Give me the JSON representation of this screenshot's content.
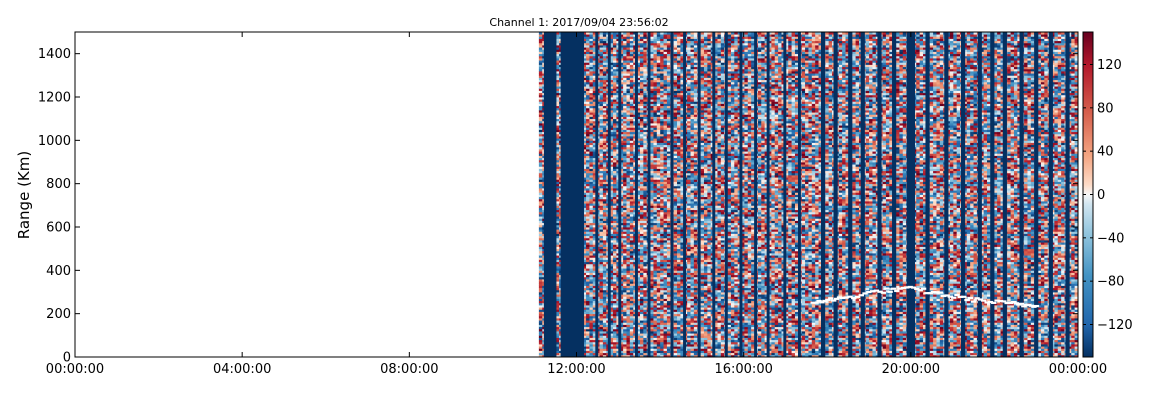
{
  "chart_data": {
    "type": "heatmap",
    "title": "Channel 1: 2017/09/04 23:56:02",
    "xlabel": "",
    "ylabel": "Range (Km)",
    "x_ticks": [
      "00:00:00",
      "04:00:00",
      "08:00:00",
      "12:00:00",
      "16:00:00",
      "20:00:00",
      "00:00:00"
    ],
    "x_range_hours": [
      0,
      24
    ],
    "y_ticks": [
      0,
      200,
      400,
      600,
      800,
      1000,
      1200,
      1400
    ],
    "ylim": [
      0,
      1500
    ],
    "colorbar": {
      "ticks": [
        -120,
        -80,
        -40,
        0,
        40,
        80,
        120
      ],
      "range": [
        -150,
        150
      ],
      "colormap": "RdBu_r"
    },
    "data_start_hour": 11.1,
    "data_end_hour": 24,
    "time_bins": 160,
    "range_bins": 150,
    "solid_low_columns_hours": [
      [
        11.22,
        11.52
      ],
      [
        11.62,
        12.18
      ],
      [
        12.45,
        12.52
      ],
      [
        12.75,
        12.82
      ],
      [
        13.0,
        13.07
      ],
      [
        13.4,
        13.47
      ],
      [
        13.7,
        13.77
      ],
      [
        14.25,
        14.32
      ],
      [
        14.55,
        14.62
      ],
      [
        14.9,
        14.97
      ],
      [
        15.25,
        15.32
      ],
      [
        15.55,
        15.62
      ],
      [
        15.9,
        15.97
      ],
      [
        16.25,
        16.32
      ],
      [
        16.55,
        16.62
      ],
      [
        16.95,
        17.02
      ],
      [
        17.3,
        17.37
      ],
      [
        17.85,
        17.95
      ],
      [
        18.15,
        18.25
      ],
      [
        18.5,
        18.6
      ],
      [
        18.8,
        18.9
      ],
      [
        19.2,
        19.3
      ],
      [
        19.55,
        19.65
      ],
      [
        19.9,
        20.1
      ],
      [
        20.35,
        20.45
      ],
      [
        20.8,
        20.9
      ],
      [
        21.2,
        21.3
      ],
      [
        21.6,
        21.7
      ],
      [
        21.9,
        22.0
      ],
      [
        22.2,
        22.3
      ],
      [
        22.6,
        22.7
      ],
      [
        22.95,
        23.05
      ],
      [
        23.3,
        23.4
      ],
      [
        23.7,
        23.8
      ]
    ],
    "masked_echo_trace": [
      {
        "hour": 17.6,
        "range": 260
      },
      {
        "hour": 18.3,
        "range": 275
      },
      {
        "hour": 19.2,
        "range": 310
      },
      {
        "hour": 20.0,
        "range": 320
      },
      {
        "hour": 20.8,
        "range": 290
      },
      {
        "hour": 21.6,
        "range": 265
      },
      {
        "hour": 22.4,
        "range": 250
      },
      {
        "hour": 23.0,
        "range": 240
      }
    ]
  }
}
